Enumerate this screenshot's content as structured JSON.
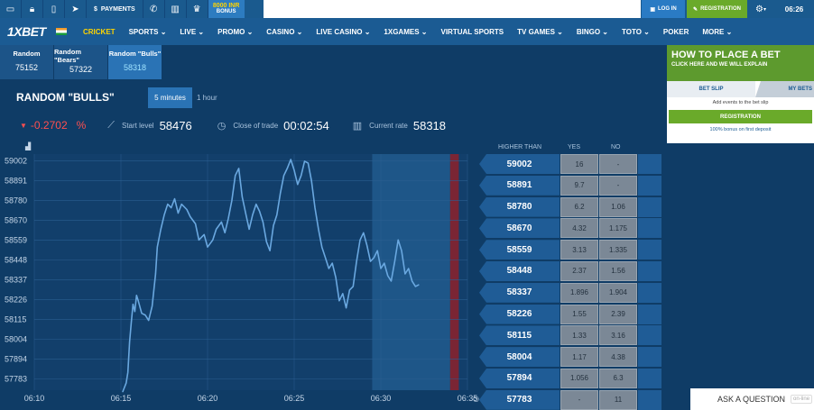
{
  "topbar": {
    "icons": [
      "desktop-icon",
      "lock-icon",
      "mobile-icon",
      "telegram-icon"
    ],
    "payments_label": "PAYMENTS",
    "bonus_amount": "8000 INR",
    "bonus_label": "BONUS",
    "login_label": "LOG IN",
    "registration_label": "REGISTRATION",
    "time": "06:26"
  },
  "nav": {
    "logo_prefix": "1X",
    "logo_suffix": "BET",
    "items": [
      "CRICKET",
      "SPORTS",
      "LIVE",
      "PROMO",
      "CASINO",
      "LIVE CASINO",
      "1XGAMES",
      "VIRTUAL SPORTS",
      "TV GAMES",
      "BINGO",
      "TOTO",
      "POKER",
      "MORE"
    ],
    "dropdown_items": [
      false,
      true,
      true,
      true,
      true,
      true,
      true,
      false,
      true,
      true,
      true,
      false,
      true
    ]
  },
  "tabs": [
    {
      "name": "Random",
      "value": "75152"
    },
    {
      "name": "Random \"Bears\"",
      "value": "57322"
    },
    {
      "name": "Random \"Bulls\"",
      "value": "58318"
    }
  ],
  "main": {
    "title": "RANDOM \"BULLS\"",
    "duration_active": "5 minutes",
    "duration_other": "1 hour",
    "change": "-0.2702",
    "change_unit": "%",
    "start_label": "Start level",
    "start_value": "58476",
    "close_label": "Close of trade",
    "close_value": "00:02:54",
    "rate_label": "Current rate",
    "rate_value": "58318"
  },
  "chart_data": {
    "type": "line",
    "y_ticks": [
      "59002",
      "58891",
      "58780",
      "58670",
      "58559",
      "58448",
      "58337",
      "58226",
      "58115",
      "58004",
      "57894",
      "57783"
    ],
    "x_ticks": [
      "06:10",
      "06:15",
      "06:20",
      "06:25",
      "06:30",
      "06:35"
    ],
    "ylim": [
      57720,
      59040
    ],
    "xlim_minutes": [
      0,
      25
    ],
    "series": [
      {
        "x": [
          5.1,
          5.3,
          5.4,
          5.5,
          5.6,
          5.7,
          5.8,
          5.9,
          6.0,
          6.2,
          6.4,
          6.6,
          6.8,
          7.0,
          7.1,
          7.3,
          7.5,
          7.7,
          7.9,
          8.1,
          8.3,
          8.5,
          8.8,
          9.0,
          9.3,
          9.5,
          9.8,
          10.0,
          10.3,
          10.5,
          10.8,
          11.0,
          11.2,
          11.4,
          11.6,
          11.8,
          12.0,
          12.2,
          12.4,
          12.6,
          12.8,
          13.0,
          13.2,
          13.4,
          13.6,
          13.8,
          14.0,
          14.2,
          14.4,
          14.6,
          14.8,
          15.0,
          15.2,
          15.4,
          15.6,
          15.8,
          16.0,
          16.2,
          16.4,
          16.6,
          16.8,
          17.0,
          17.2,
          17.4,
          17.6,
          17.8,
          18.0,
          18.2,
          18.4,
          18.6,
          18.8,
          19.0,
          19.2,
          19.4,
          19.6,
          19.8,
          20.0,
          20.2,
          20.4,
          20.6,
          20.8,
          21.0,
          21.2,
          21.4,
          21.6,
          21.8,
          22.0,
          22.2
        ],
        "values": [
          57710,
          57760,
          57820,
          57990,
          58100,
          58200,
          58160,
          58250,
          58220,
          58150,
          58140,
          58110,
          58190,
          58370,
          58520,
          58620,
          58700,
          58760,
          58740,
          58790,
          58710,
          58760,
          58730,
          58690,
          58650,
          58560,
          58590,
          58520,
          58560,
          58620,
          58660,
          58600,
          58680,
          58780,
          58920,
          58960,
          58800,
          58710,
          58620,
          58700,
          58760,
          58720,
          58660,
          58550,
          58500,
          58640,
          58700,
          58820,
          58920,
          58960,
          59010,
          58950,
          58870,
          58920,
          59000,
          58990,
          58890,
          58740,
          58620,
          58520,
          58460,
          58400,
          58430,
          58350,
          58220,
          58260,
          58180,
          58280,
          58300,
          58440,
          58560,
          58600,
          58530,
          58440,
          58460,
          58500,
          58400,
          58430,
          58360,
          58330,
          58440,
          58560,
          58500,
          58370,
          58400,
          58330,
          58300,
          58310
        ]
      }
    ]
  },
  "ladder": {
    "headers": [
      "HIGHER THAN",
      "YES",
      "NO"
    ],
    "rows": [
      {
        "price": "59002",
        "yes": "16",
        "no": "-"
      },
      {
        "price": "58891",
        "yes": "9.7",
        "no": "-"
      },
      {
        "price": "58780",
        "yes": "6.2",
        "no": "1.06"
      },
      {
        "price": "58670",
        "yes": "4.32",
        "no": "1.175"
      },
      {
        "price": "58559",
        "yes": "3.13",
        "no": "1.335"
      },
      {
        "price": "58448",
        "yes": "2.37",
        "no": "1.56"
      },
      {
        "price": "58337",
        "yes": "1.896",
        "no": "1.904"
      },
      {
        "price": "58226",
        "yes": "1.55",
        "no": "2.39"
      },
      {
        "price": "58115",
        "yes": "1.33",
        "no": "3.16"
      },
      {
        "price": "58004",
        "yes": "1.17",
        "no": "4.38"
      },
      {
        "price": "57894",
        "yes": "1.056",
        "no": "6.3"
      },
      {
        "price": "57783",
        "yes": "-",
        "no": "11"
      }
    ]
  },
  "howto": {
    "title": "HOW TO PLACE A BET",
    "subtitle": "CLICK HERE AND WE WILL EXPLAIN"
  },
  "betslip": {
    "tab1": "BET SLIP",
    "tab2": "MY BETS",
    "message": "Add events to the bet slip",
    "button": "REGISTRATION",
    "bonus": "100% bonus on first deposit"
  },
  "ask": {
    "label": "ASK A QUESTION",
    "status": "on-line"
  },
  "colors": {
    "background": "#0f3c66",
    "accent_green": "#6aaa2a",
    "negative": "#ff4f4f",
    "active_nav": "#ffd400",
    "chart_line": "#6aa8e0"
  }
}
